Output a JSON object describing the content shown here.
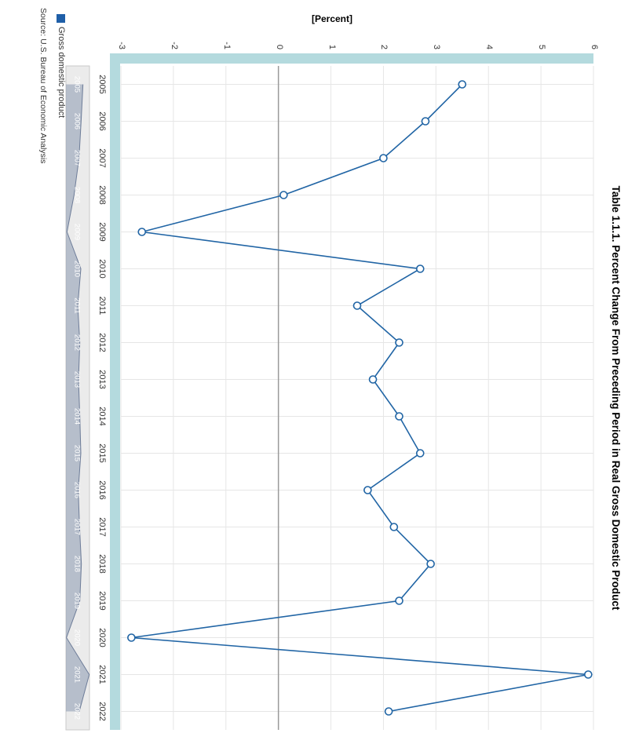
{
  "title": "Table 1.1.1. Percent Change From Preceding Period in Real Gross Domestic Product",
  "y_axis": {
    "title": "[Percent]",
    "ticks": [
      -3,
      -2,
      -1,
      0,
      1,
      2,
      3,
      4,
      5,
      6
    ],
    "min": -3,
    "max": 6
  },
  "legend": {
    "label": "Gross domestic product"
  },
  "source": "Source: U.S. Bureau of Economic Analysis",
  "colors": {
    "line": "#2165a5",
    "marker_fill": "#ffffff",
    "axis_band": "#b4dade",
    "grid": "#e6e6e6",
    "zero_line": "#9a9a9a",
    "navigator_bg": "#ebebeb",
    "navigator_border": "#c9c9c9",
    "navigator_area": "#8b99b0",
    "navigator_line": "#6e7d99",
    "nav_label": "#ffffff"
  },
  "chart_data": {
    "type": "line",
    "title": "Table 1.1.1. Percent Change From Preceding Period in Real Gross Domestic Product",
    "xlabel": "",
    "ylabel": "[Percent]",
    "ylim": [
      -3,
      6
    ],
    "grid": true,
    "marker": "open-circle",
    "orientation_note": "chart rendered rotated 90 degrees clockwise in screenshot",
    "legend_position": "bottom-left",
    "navigator": true,
    "categories": [
      "2005",
      "2006",
      "2007",
      "2008",
      "2009",
      "2010",
      "2011",
      "2012",
      "2013",
      "2014",
      "2015",
      "2016",
      "2017",
      "2018",
      "2019",
      "2020",
      "2021",
      "2022"
    ],
    "series": [
      {
        "name": "Gross domestic product",
        "values": [
          3.5,
          2.8,
          2.0,
          0.1,
          -2.6,
          2.7,
          1.5,
          2.3,
          1.8,
          2.3,
          2.7,
          1.7,
          2.2,
          2.9,
          2.3,
          -2.8,
          5.9,
          2.1
        ]
      }
    ]
  }
}
